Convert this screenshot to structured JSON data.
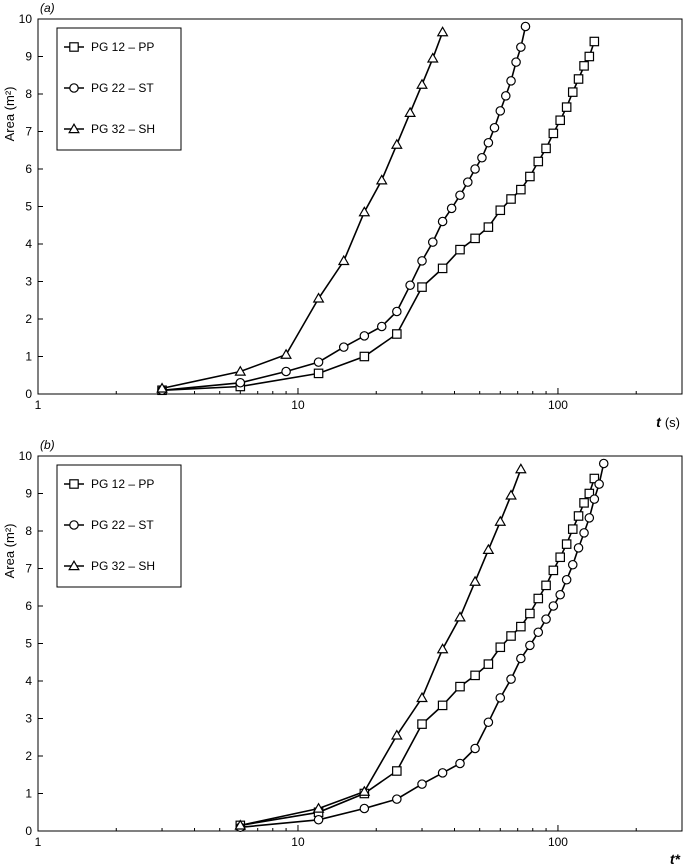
{
  "chart_data": [
    {
      "type": "line",
      "panel_label": "(a)",
      "ylabel": "Area (m²)",
      "xlabel_main": "t",
      "xlabel_unit": "(s)",
      "xscale": "log",
      "xlim": [
        1,
        300
      ],
      "ylim": [
        0,
        10
      ],
      "xticks": [
        1,
        10,
        100
      ],
      "xtick_labels": [
        "1",
        "10",
        "100"
      ],
      "yticks": [
        0,
        1,
        2,
        3,
        4,
        5,
        6,
        7,
        8,
        9,
        10
      ],
      "ytick_labels": [
        "0",
        "1",
        "2",
        "3",
        "4",
        "5",
        "6",
        "7",
        "8",
        "9",
        "10"
      ],
      "grid": false,
      "legend_position": "top-left",
      "series": [
        {
          "name": "PG 12 – PP",
          "marker": "square",
          "x": [
            3,
            6,
            12,
            18,
            24,
            30,
            36,
            42,
            48,
            54,
            60,
            66,
            72,
            78,
            84,
            90,
            96,
            102,
            108,
            114,
            120,
            126,
            132,
            138
          ],
          "y": [
            0.1,
            0.2,
            0.55,
            1.0,
            1.6,
            2.85,
            3.35,
            3.85,
            4.15,
            4.45,
            4.9,
            5.2,
            5.45,
            5.8,
            6.2,
            6.55,
            6.95,
            7.3,
            7.65,
            8.05,
            8.4,
            8.75,
            9.0,
            9.4
          ]
        },
        {
          "name": "PG 22 – ST",
          "marker": "circle",
          "x": [
            3,
            6,
            9,
            12,
            15,
            18,
            21,
            24,
            27,
            30,
            33,
            36,
            39,
            42,
            45,
            48,
            51,
            54,
            57,
            60,
            63,
            66,
            69,
            72,
            75
          ],
          "y": [
            0.1,
            0.3,
            0.6,
            0.85,
            1.25,
            1.55,
            1.8,
            2.2,
            2.9,
            3.55,
            4.05,
            4.6,
            4.95,
            5.3,
            5.65,
            6.0,
            6.3,
            6.7,
            7.1,
            7.55,
            7.95,
            8.35,
            8.85,
            9.25,
            9.8
          ]
        },
        {
          "name": "PG 32 – SH",
          "marker": "triangle",
          "x": [
            3,
            6,
            9,
            12,
            15,
            18,
            21,
            24,
            27,
            30,
            33,
            36
          ],
          "y": [
            0.15,
            0.6,
            1.05,
            2.55,
            3.55,
            4.85,
            5.7,
            6.65,
            7.5,
            8.25,
            8.95,
            9.65
          ]
        }
      ]
    },
    {
      "type": "line",
      "panel_label": "(b)",
      "ylabel": "Area (m²)",
      "xlabel_main": "t*",
      "xlabel_unit": "",
      "xscale": "log",
      "xlim": [
        1,
        300
      ],
      "ylim": [
        0,
        10
      ],
      "xticks": [
        1,
        10,
        100
      ],
      "xtick_labels": [
        "1",
        "10",
        "100"
      ],
      "yticks": [
        0,
        1,
        2,
        3,
        4,
        5,
        6,
        7,
        8,
        9,
        10
      ],
      "ytick_labels": [
        "0",
        "1",
        "2",
        "3",
        "4",
        "5",
        "6",
        "7",
        "8",
        "9",
        "10"
      ],
      "grid": false,
      "legend_position": "top-left",
      "series": [
        {
          "name": "PG 12 – PP",
          "marker": "square",
          "x": [
            6,
            12,
            18,
            24,
            30,
            36,
            42,
            48,
            54,
            60,
            66,
            72,
            78,
            84,
            90,
            96,
            102,
            108,
            114,
            120,
            126,
            132,
            138
          ],
          "y": [
            0.15,
            0.5,
            1.0,
            1.6,
            2.85,
            3.35,
            3.85,
            4.15,
            4.45,
            4.9,
            5.2,
            5.45,
            5.8,
            6.2,
            6.55,
            6.95,
            7.3,
            7.65,
            8.05,
            8.4,
            8.75,
            9.0,
            9.4
          ]
        },
        {
          "name": "PG 22 – ST",
          "marker": "circle",
          "x": [
            6,
            12,
            18,
            24,
            30,
            36,
            42,
            48,
            54,
            60,
            66,
            72,
            78,
            84,
            90,
            96,
            102,
            108,
            114,
            120,
            126,
            132,
            138,
            144,
            150
          ],
          "y": [
            0.1,
            0.3,
            0.6,
            0.85,
            1.25,
            1.55,
            1.8,
            2.2,
            2.9,
            3.55,
            4.05,
            4.6,
            4.95,
            5.3,
            5.65,
            6.0,
            6.3,
            6.7,
            7.1,
            7.55,
            7.95,
            8.35,
            8.85,
            9.25,
            9.8
          ]
        },
        {
          "name": "PG 32 – SH",
          "marker": "triangle",
          "x": [
            6,
            12,
            18,
            24,
            30,
            36,
            42,
            48,
            54,
            60,
            66,
            72
          ],
          "y": [
            0.15,
            0.6,
            1.05,
            2.55,
            3.55,
            4.85,
            5.7,
            6.65,
            7.5,
            8.25,
            8.95,
            9.65
          ]
        }
      ]
    }
  ]
}
